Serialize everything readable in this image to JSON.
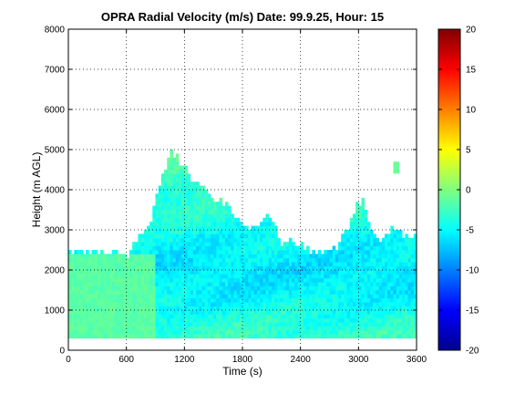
{
  "chart_data": {
    "type": "heatmap",
    "title": "OPRA Radial Velocity (m/s)  Date: 99.9.25, Hour: 15",
    "xlabel": "Time (s)",
    "ylabel": "Height (m AGL)",
    "xlim": [
      0,
      3600
    ],
    "ylim": [
      0,
      8000
    ],
    "x_ticks": [
      "0",
      "600",
      "1200",
      "1800",
      "2400",
      "3000",
      "3600"
    ],
    "y_ticks": [
      "0",
      "1000",
      "2000",
      "3000",
      "4000",
      "5000",
      "6000",
      "7000",
      "8000"
    ],
    "grid": true,
    "colormap": "jet",
    "colorbar": {
      "range": [
        -20,
        20
      ],
      "ticks": [
        "-20",
        "-15",
        "-10",
        "-5",
        "0",
        "5",
        "10",
        "15",
        "20"
      ]
    },
    "field": {
      "x_step_s": 30,
      "height_step_m": 100,
      "echo_top_m": [
        [
          0,
          2400
        ],
        [
          540,
          2400
        ],
        [
          600,
          2200
        ],
        [
          660,
          2600
        ],
        [
          720,
          2700
        ],
        [
          780,
          2900
        ],
        [
          840,
          3000
        ],
        [
          900,
          3800
        ],
        [
          960,
          4200
        ],
        [
          1020,
          4600
        ],
        [
          1080,
          4900
        ],
        [
          1140,
          4700
        ],
        [
          1200,
          4550
        ],
        [
          1260,
          4300
        ],
        [
          1320,
          4200
        ],
        [
          1380,
          4050
        ],
        [
          1440,
          3900
        ],
        [
          1500,
          3800
        ],
        [
          1560,
          3700
        ],
        [
          1620,
          3600
        ],
        [
          1680,
          3400
        ],
        [
          1740,
          3300
        ],
        [
          1800,
          3100
        ],
        [
          1860,
          3000
        ],
        [
          1920,
          3000
        ],
        [
          1980,
          3100
        ],
        [
          2040,
          3300
        ],
        [
          2100,
          3200
        ],
        [
          2160,
          2900
        ],
        [
          2220,
          2600
        ],
        [
          2280,
          2700
        ],
        [
          2340,
          2600
        ],
        [
          2400,
          2550
        ],
        [
          2460,
          2500
        ],
        [
          2520,
          2400
        ],
        [
          2580,
          2350
        ],
        [
          2640,
          2400
        ],
        [
          2700,
          2500
        ],
        [
          2760,
          2500
        ],
        [
          2820,
          2650
        ],
        [
          2880,
          2950
        ],
        [
          2940,
          3350
        ],
        [
          3000,
          3650
        ],
        [
          3060,
          3600
        ],
        [
          3120,
          3050
        ],
        [
          3180,
          2800
        ],
        [
          3240,
          2700
        ],
        [
          3300,
          2900
        ],
        [
          3360,
          3000
        ],
        [
          3420,
          2950
        ],
        [
          3480,
          2800
        ],
        [
          3540,
          2750
        ],
        [
          3600,
          2700
        ]
      ],
      "echo_base_m": 300,
      "velocity_by_height": [
        [
          300,
          -3
        ],
        [
          800,
          -4
        ],
        [
          1400,
          -5.5
        ],
        [
          2000,
          -6
        ],
        [
          2600,
          -5
        ],
        [
          3200,
          -4
        ],
        [
          3800,
          -3
        ],
        [
          4500,
          -2
        ]
      ],
      "near_zero_layer_until_s": 900,
      "near_zero_layer_top_m": 2400,
      "isolated_echo": {
        "t": [
          3360,
          3420
        ],
        "h": [
          4400,
          4700
        ],
        "value": -1
      }
    }
  }
}
